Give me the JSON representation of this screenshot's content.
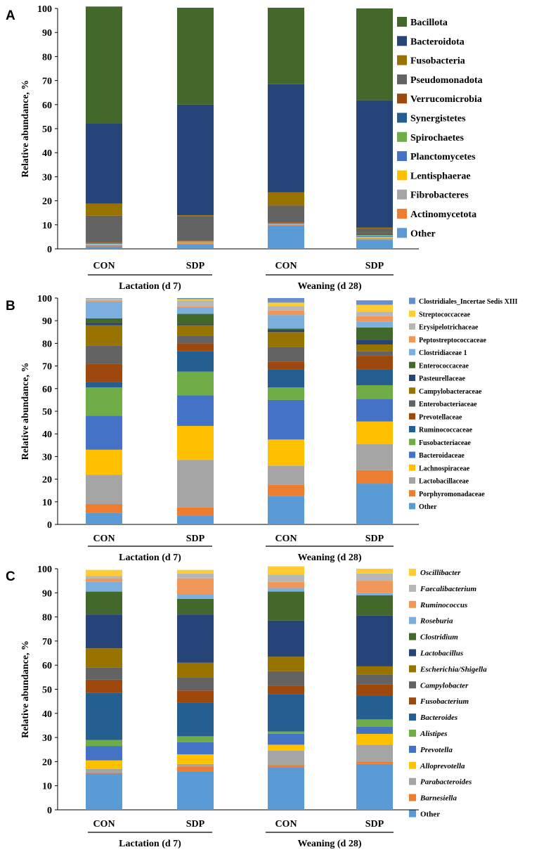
{
  "chart_data": [
    {
      "panel": "A",
      "type": "bar",
      "stacked": true,
      "ylabel": "Relative abundance, %",
      "ylim": [
        0,
        100
      ],
      "yticks": [
        0,
        10,
        20,
        30,
        40,
        50,
        60,
        70,
        80,
        90,
        100
      ],
      "categories": [
        "CON",
        "SDP",
        "CON",
        "SDP"
      ],
      "groups": [
        {
          "label": "Lactation (d 7)",
          "categories": [
            0,
            1
          ]
        },
        {
          "label": "Weaning (d 28)",
          "categories": [
            2,
            3
          ]
        }
      ],
      "series": [
        {
          "name": "Other",
          "color": "#5B9BD5",
          "values": [
            1,
            2,
            9.5,
            3.5
          ]
        },
        {
          "name": "Actinomycetota",
          "color": "#ED7D31",
          "values": [
            0.5,
            0.3,
            0.3,
            0.3
          ]
        },
        {
          "name": "Fibrobacteres",
          "color": "#A5A5A5",
          "values": [
            0.3,
            0.3,
            0.3,
            0.7
          ]
        },
        {
          "name": "Lentisphaerae",
          "color": "#FFC000",
          "values": [
            0.2,
            0.2,
            0.2,
            0.5
          ]
        },
        {
          "name": "Planctomycetes",
          "color": "#4472C4",
          "values": [
            0.2,
            0.2,
            0.2,
            0.3
          ]
        },
        {
          "name": "Spirochaetes",
          "color": "#70AD47",
          "values": [
            0.2,
            0.2,
            0.2,
            0.5
          ]
        },
        {
          "name": "Synergistetes",
          "color": "#255E91",
          "values": [
            0.1,
            0.1,
            0.1,
            0.5
          ]
        },
        {
          "name": "Verrucomicrobia",
          "color": "#9E480E",
          "values": [
            0.3,
            0.2,
            0.2,
            0.2
          ]
        },
        {
          "name": "Pseudomonadota",
          "color": "#636363",
          "values": [
            11,
            10.2,
            7,
            2
          ]
        },
        {
          "name": "Fusobacteria",
          "color": "#997300",
          "values": [
            5,
            0.3,
            5.5,
            0.3
          ]
        },
        {
          "name": "Bacteroidota",
          "color": "#264478",
          "values": [
            33.5,
            46,
            45,
            53
          ]
        },
        {
          "name": "Bacillota",
          "color": "#43682B",
          "values": [
            48.5,
            40.3,
            31.8,
            38.2
          ]
        }
      ]
    },
    {
      "panel": "B",
      "type": "bar",
      "stacked": true,
      "ylabel": "Relative abundance, %",
      "ylim": [
        0,
        100
      ],
      "yticks": [
        0,
        10,
        20,
        30,
        40,
        50,
        60,
        70,
        80,
        90,
        100
      ],
      "categories": [
        "CON",
        "SDP",
        "CON",
        "SDP"
      ],
      "groups": [
        {
          "label": "Lactation (d 7)",
          "categories": [
            0,
            1
          ]
        },
        {
          "label": "Weaning (d 28)",
          "categories": [
            2,
            3
          ]
        }
      ],
      "series": [
        {
          "name": "Other",
          "color": "#5B9BD5",
          "values": [
            5,
            4,
            12.5,
            18
          ]
        },
        {
          "name": "Porphyromonadaceae",
          "color": "#ED7D31",
          "values": [
            4,
            3.5,
            5,
            6
          ]
        },
        {
          "name": "Lactobacillaceae",
          "color": "#A5A5A5",
          "values": [
            13,
            21,
            8.5,
            11.5
          ]
        },
        {
          "name": "Lachnospiraceae",
          "color": "#FFC000",
          "values": [
            11,
            15,
            11.5,
            10
          ]
        },
        {
          "name": "Bacteroidaceae",
          "color": "#4472C4",
          "values": [
            15,
            13.5,
            17.5,
            10
          ]
        },
        {
          "name": "Fusobacteriaceae",
          "color": "#70AD47",
          "values": [
            12.5,
            10.5,
            5.5,
            6
          ]
        },
        {
          "name": "Ruminococcaceae",
          "color": "#255E91",
          "values": [
            2.5,
            9,
            8,
            7
          ]
        },
        {
          "name": "Prevotellaceae",
          "color": "#9E480E",
          "values": [
            8,
            3.5,
            3.5,
            6
          ]
        },
        {
          "name": "Enterobacteriaceae",
          "color": "#636363",
          "values": [
            8,
            3.5,
            6.5,
            2
          ]
        },
        {
          "name": "Campylobacteraceae",
          "color": "#997300",
          "values": [
            9,
            4.5,
            6.5,
            3
          ]
        },
        {
          "name": "Pasteurellaceae",
          "color": "#264478",
          "values": [
            1,
            0.5,
            1,
            2
          ]
        },
        {
          "name": "Enterococcaceae",
          "color": "#43682B",
          "values": [
            2,
            4.5,
            0.5,
            5.5
          ]
        },
        {
          "name": "Clostridiaceae 1",
          "color": "#7CAFDD",
          "values": [
            7.5,
            3,
            6,
            2.5
          ]
        },
        {
          "name": "Peptostreptococcaceae",
          "color": "#F1975A",
          "values": [
            0.5,
            0.5,
            2,
            2.5
          ]
        },
        {
          "name": "Erysipelotrichaceae",
          "color": "#B7B7B7",
          "values": [
            0.5,
            2.5,
            2,
            2
          ]
        },
        {
          "name": "Streptococcaceae",
          "color": "#FFCD33",
          "values": [
            0.3,
            0.5,
            1.5,
            3
          ]
        },
        {
          "name": "Clostridiales_Incertae Sedis XIII",
          "color": "#698ED0",
          "values": [
            0.2,
            0.5,
            2,
            2
          ]
        }
      ]
    },
    {
      "panel": "C",
      "type": "bar",
      "stacked": true,
      "ylabel": "Relative abundance, %",
      "ylim": [
        0,
        100
      ],
      "yticks": [
        0,
        10,
        20,
        30,
        40,
        50,
        60,
        70,
        80,
        90,
        100
      ],
      "categories": [
        "CON",
        "SDP",
        "CON",
        "SDP"
      ],
      "groups": [
        {
          "label": "Lactation (d 7)",
          "categories": [
            0,
            1
          ]
        },
        {
          "label": "Weaning (d 28)",
          "categories": [
            2,
            3
          ]
        }
      ],
      "series": [
        {
          "name": "Other",
          "italic": false,
          "color": "#5B9BD5",
          "values": [
            15,
            16,
            17.5,
            19
          ]
        },
        {
          "name": "Barnesiella",
          "italic": true,
          "color": "#ED7D31",
          "values": [
            0.5,
            2,
            1,
            1
          ]
        },
        {
          "name": "Parabacteroides",
          "italic": true,
          "color": "#A5A5A5",
          "values": [
            1.5,
            1,
            6,
            7
          ]
        },
        {
          "name": "Alloprevotella",
          "italic": true,
          "color": "#FFC000",
          "values": [
            3.5,
            4,
            2.5,
            4.5
          ]
        },
        {
          "name": "Prevotella",
          "italic": true,
          "color": "#4472C4",
          "values": [
            6,
            5,
            4.5,
            3
          ]
        },
        {
          "name": "Alistipes",
          "italic": true,
          "color": "#70AD47",
          "values": [
            2.5,
            2.5,
            1,
            3
          ]
        },
        {
          "name": "Bacteroides",
          "italic": true,
          "color": "#255E91",
          "values": [
            19.5,
            14,
            15.5,
            10
          ]
        },
        {
          "name": "Fusobacterium",
          "italic": true,
          "color": "#9E480E",
          "values": [
            5.5,
            5,
            3.5,
            4.5
          ]
        },
        {
          "name": "Campylobacter",
          "italic": true,
          "color": "#636363",
          "values": [
            5,
            5.5,
            6,
            4
          ]
        },
        {
          "name": "Escherichia/Shigella",
          "italic": true,
          "color": "#997300",
          "values": [
            8,
            6,
            6,
            3.5
          ]
        },
        {
          "name": "Lactobacillus",
          "italic": true,
          "color": "#264478",
          "values": [
            14,
            20,
            15,
            21
          ]
        },
        {
          "name": "Clostridium",
          "italic": true,
          "color": "#43682B",
          "values": [
            9.5,
            6.5,
            12,
            8.5
          ]
        },
        {
          "name": "Roseburia",
          "italic": true,
          "color": "#7CAFDD",
          "values": [
            4,
            2,
            1.5,
            1
          ]
        },
        {
          "name": "Ruminococcus",
          "italic": true,
          "color": "#F1975A",
          "values": [
            1.5,
            6.5,
            2.5,
            5
          ]
        },
        {
          "name": "Faecalibacterium",
          "italic": true,
          "color": "#B7B7B7",
          "values": [
            1,
            2,
            3,
            3
          ]
        },
        {
          "name": "Oscillibacter",
          "italic": true,
          "color": "#FFCD33",
          "values": [
            2.5,
            1.5,
            3.5,
            2
          ]
        }
      ]
    }
  ]
}
